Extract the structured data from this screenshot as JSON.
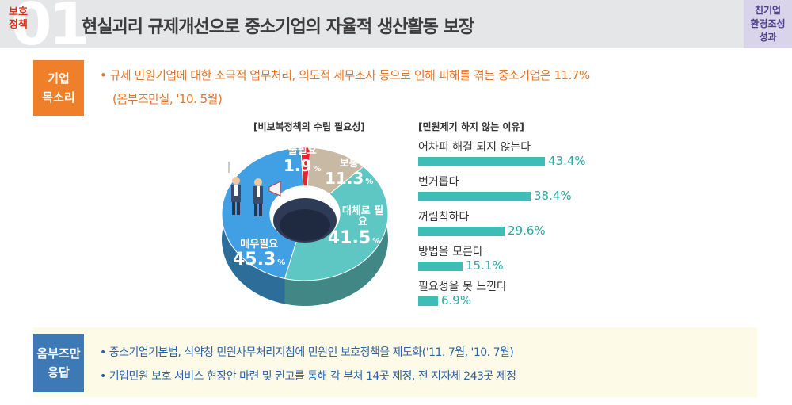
{
  "header": {
    "number": "01",
    "tag_line1": "보호",
    "tag_line2": "정책",
    "title": "현실괴리 규제개선으로 중소기업의 자율적 생산활동 보장",
    "badge_line1": "친기업",
    "badge_line2": "환경조성",
    "badge_line3": "성과"
  },
  "voice": {
    "label_line1": "기업",
    "label_line2": "목소리",
    "line1": "• 규제 민원기업에 대한 소극적 업무처리, 의도적 세무조사 등으로 인해 피해를 겪는 중소기업은 11.7%",
    "line2": "(옴부즈만실, '10. 5월)"
  },
  "answer": {
    "label_line1": "옴부즈만",
    "label_line2": "응답",
    "item1": "• 중소기업기본법, 식약청 민원사무처리지침에 민원인 보호정책을 제도화('11. 7월, '10. 7월)",
    "item2": "• 기업민원 보호 서비스 현장안 마련 및 권고를 통해 각 부처 14곳 제정, 전 지자체 243곳 제정"
  },
  "chart_data": [
    {
      "type": "pie",
      "title": "[비보복정책의 수립 필요성]",
      "unit": "%",
      "slices": [
        {
          "name": "불필요",
          "value": 1.9,
          "color": "#e8222e"
        },
        {
          "name": "보통",
          "value": 11.3,
          "color": "#c8b9a4"
        },
        {
          "name": "대체로 필요",
          "value": 41.5,
          "color": "#5ec6c3"
        },
        {
          "name": "매우필요",
          "value": 45.3,
          "color": "#41a0e3"
        }
      ]
    },
    {
      "type": "bar",
      "title": "[민원제기 하지 않는 이유]",
      "orientation": "horizontal",
      "color": "#3dbdb6",
      "categories": [
        "어차피 해결 되지 않는다",
        "번거롭다",
        "꺼림칙하다",
        "방법을 모른다",
        "필요성을 못 느낀다"
      ],
      "values": [
        43.4,
        38.4,
        29.6,
        15.1,
        6.9
      ],
      "labels": [
        "43.4%",
        "38.4%",
        "29.6%",
        "15.1%",
        "6.9%"
      ]
    }
  ]
}
